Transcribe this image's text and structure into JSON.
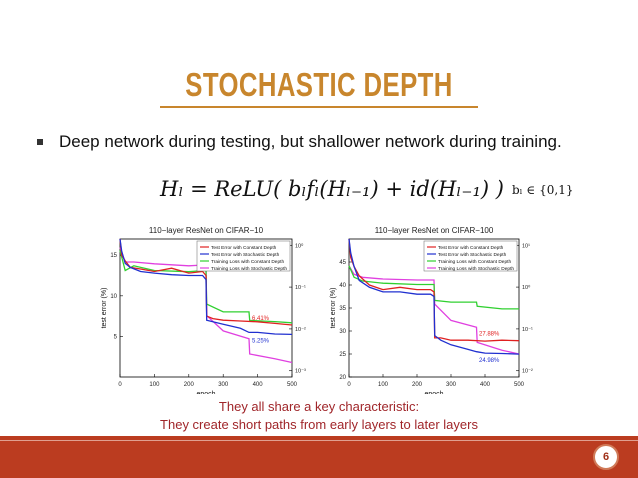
{
  "slide": {
    "title": "STOCHASTIC DEPTH",
    "bullet": "Deep network during testing, but shallower network during training.",
    "formula": "Hₗ = ReLU( bₗfₗ(Hₗ₋₁) + id(Hₗ₋₁) )",
    "formula_side": "bₗ ∈ {0,1}",
    "caption_line1": "They all share a key characteristic:",
    "caption_line2": "They create short paths from early layers to later layers",
    "page_number": "6"
  },
  "colors": {
    "title": "#c8862d",
    "caption": "#a0262a",
    "footer": "#bb3c20",
    "test_constant": "#e02020",
    "test_stochastic": "#2030d0",
    "train_constant": "#30d030",
    "train_stochastic": "#e040e0"
  },
  "chart_data": [
    {
      "type": "line",
      "title": "110−layer ResNet on CIFAR−10",
      "xlabel": "epoch",
      "ylabel": "test error (%)",
      "y2label": "training loss",
      "xlim": [
        0,
        500
      ],
      "ylim": [
        0,
        17
      ],
      "x_ticks": [
        "0",
        "100",
        "200",
        "300",
        "400",
        "500"
      ],
      "y_ticks": [
        "5",
        "10",
        "15"
      ],
      "y2_ticks": [
        "10⁻³",
        "10⁻²",
        "10⁻¹",
        "10⁰"
      ],
      "legend": [
        "Test Error with Constant Depth",
        "Test Error with Stochastic Depth",
        "Training Loss with Constant Depth",
        "Training Loss with Stochastic Depth"
      ],
      "legend_position": "top-right",
      "annotations": [
        "6.41%",
        "5.25%"
      ],
      "series": [
        {
          "name": "Test Error with Constant Depth",
          "axis": "left",
          "color": "#e02020",
          "x": [
            0,
            5,
            15,
            30,
            60,
            100,
            150,
            200,
            240,
            250,
            252,
            270,
            300,
            350,
            400,
            450,
            500
          ],
          "y": [
            17,
            15,
            14.3,
            13.5,
            13.3,
            13,
            13.4,
            12.8,
            13,
            12.5,
            7.5,
            7.2,
            7,
            6.9,
            6.8,
            6.6,
            6.4
          ]
        },
        {
          "name": "Test Error with Stochastic Depth",
          "axis": "left",
          "color": "#2030d0",
          "x": [
            0,
            5,
            15,
            30,
            60,
            100,
            150,
            200,
            240,
            250,
            252,
            270,
            300,
            350,
            375,
            400,
            450,
            500
          ],
          "y": [
            17,
            15.5,
            14,
            13.5,
            13,
            12.8,
            12.6,
            12.5,
            12.5,
            12,
            7,
            6.8,
            6.5,
            6,
            5.5,
            5.5,
            5.3,
            5.25
          ]
        },
        {
          "name": "Training Loss with Constant Depth",
          "axis": "right",
          "color": "#30d030",
          "x": [
            0,
            15,
            40,
            100,
            200,
            250,
            252,
            300,
            375,
            377,
            450,
            500
          ],
          "y": [
            1,
            0.3,
            0.4,
            0.3,
            0.28,
            0.3,
            0.04,
            0.025,
            0.025,
            0.015,
            0.014,
            0.013
          ]
        },
        {
          "name": "Training Loss with Stochastic Depth",
          "axis": "right",
          "color": "#e040e0",
          "x": [
            0,
            15,
            40,
            100,
            200,
            250,
            252,
            300,
            375,
            377,
            450,
            500
          ],
          "y": [
            1.2,
            0.5,
            0.5,
            0.45,
            0.4,
            0.42,
            0.02,
            0.008,
            0.005,
            0.002,
            0.0015,
            0.0012
          ]
        }
      ]
    },
    {
      "type": "line",
      "title": "110−layer ResNet on CIFAR−100",
      "xlabel": "epoch",
      "ylabel": "test error (%)",
      "y2label": "training loss",
      "xlim": [
        0,
        500
      ],
      "ylim": [
        20,
        50
      ],
      "x_ticks": [
        "0",
        "100",
        "200",
        "300",
        "400",
        "500"
      ],
      "y_ticks": [
        "20",
        "25",
        "30",
        "35",
        "40",
        "45"
      ],
      "y2_ticks": [
        "10⁻²",
        "10⁻¹",
        "10⁰",
        "10¹"
      ],
      "legend": [
        "Test Error with Constant Depth",
        "Test Error with Stochastic Depth",
        "Training Loss with Constant Depth",
        "Training Loss with Stochastic Depth"
      ],
      "legend_position": "top-right",
      "annotations": [
        "27.88%",
        "24.98%"
      ],
      "series": [
        {
          "name": "Test Error with Constant Depth",
          "axis": "left",
          "color": "#e02020",
          "x": [
            0,
            5,
            15,
            30,
            60,
            100,
            150,
            200,
            240,
            250,
            252,
            270,
            300,
            350,
            400,
            450,
            500
          ],
          "y": [
            50,
            46,
            44,
            42,
            40,
            39,
            39.5,
            39,
            39,
            38.5,
            28.5,
            28.5,
            28,
            28,
            27.8,
            28,
            27.9
          ]
        },
        {
          "name": "Test Error with Stochastic Depth",
          "axis": "left",
          "color": "#2030d0",
          "x": [
            0,
            5,
            15,
            30,
            60,
            100,
            150,
            200,
            240,
            250,
            252,
            270,
            300,
            350,
            375,
            400,
            450,
            500
          ],
          "y": [
            50,
            47,
            44,
            41,
            39.5,
            38.5,
            38.5,
            38,
            38,
            37.5,
            29,
            28,
            27,
            26,
            25.5,
            25.2,
            25.1,
            24.98
          ]
        },
        {
          "name": "Training Loss with Constant Depth",
          "axis": "right",
          "color": "#30d030",
          "x": [
            0,
            15,
            40,
            100,
            200,
            250,
            252,
            300,
            375,
            377,
            450,
            500
          ],
          "y": [
            4,
            2,
            1.6,
            1.4,
            1.3,
            1.3,
            0.5,
            0.45,
            0.45,
            0.35,
            0.3,
            0.3
          ]
        },
        {
          "name": "Training Loss with Stochastic Depth",
          "axis": "right",
          "color": "#e040e0",
          "x": [
            0,
            15,
            40,
            100,
            200,
            250,
            252,
            300,
            375,
            377,
            450,
            500
          ],
          "y": [
            4,
            2.4,
            2,
            1.8,
            1.7,
            1.7,
            0.4,
            0.15,
            0.1,
            0.04,
            0.025,
            0.02
          ]
        }
      ]
    }
  ]
}
